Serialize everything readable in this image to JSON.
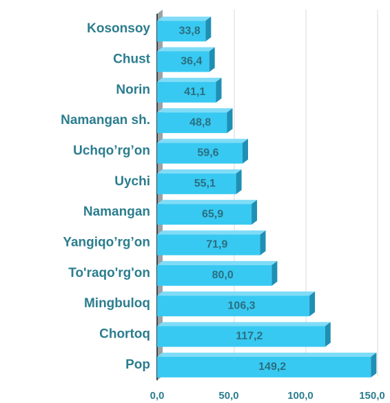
{
  "chart_data": {
    "type": "bar",
    "orientation": "horizontal",
    "categories": [
      "Kosonsoy",
      "Chust",
      "Norin",
      "Namangan sh.",
      "Uchqo’rg’on",
      "Uychi",
      "Namangan",
      "Yangiqo’rg’on",
      "To'raqo'rg'on",
      "Mingbuloq",
      "Chortoq",
      "Pop"
    ],
    "values": [
      33.8,
      36.4,
      41.1,
      48.8,
      59.6,
      55.1,
      65.9,
      71.9,
      80.0,
      106.3,
      117.2,
      149.2
    ],
    "value_labels": [
      "33,8",
      "36,4",
      "41,1",
      "48,8",
      "59,6",
      "55,1",
      "65,9",
      "71,9",
      "80,0",
      "106,3",
      "117,2",
      "149,2"
    ],
    "color": "#38c9f2",
    "xlim": [
      0,
      150
    ],
    "xticks": [
      {
        "value": 0,
        "label": "0,0"
      },
      {
        "value": 50,
        "label": "50,0"
      },
      {
        "value": 100,
        "label": "100,0"
      },
      {
        "value": 150,
        "label": "150,0"
      }
    ],
    "grid": true
  }
}
